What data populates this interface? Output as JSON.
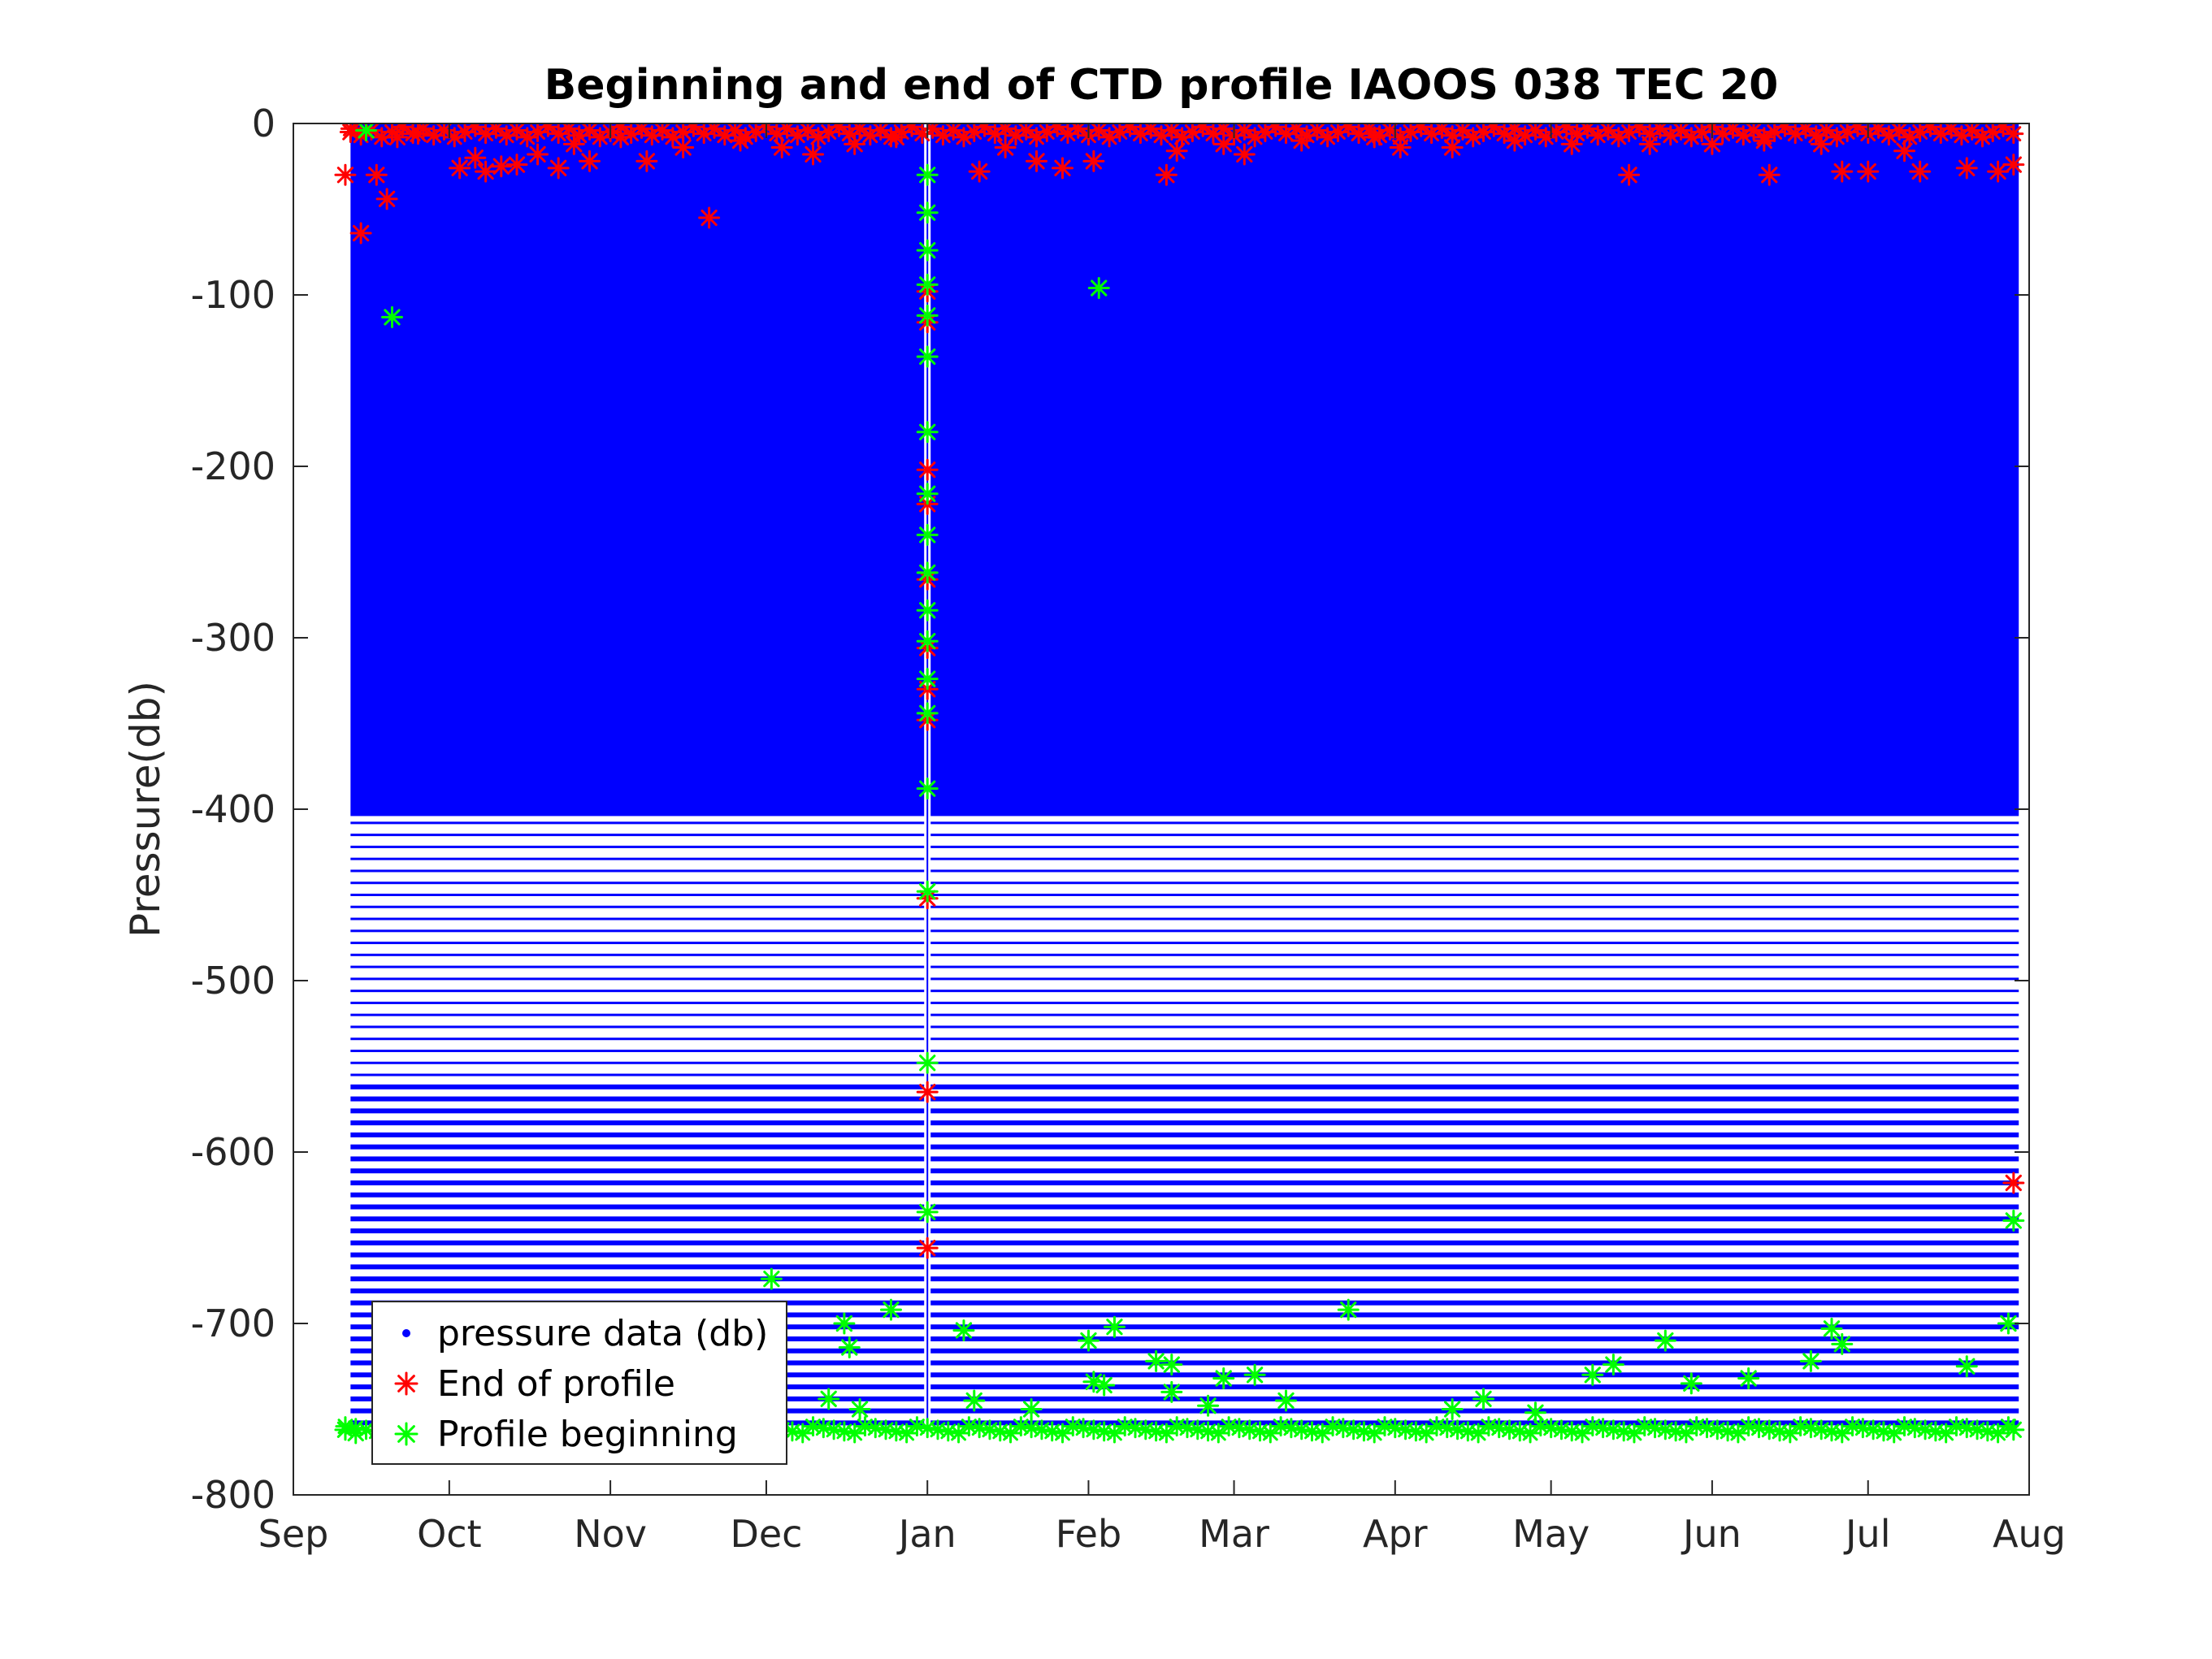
{
  "chart_data": {
    "type": "scatter",
    "title": "Beginning and end of CTD profile IAOOS 038 TEC 20",
    "xlabel": "",
    "ylabel": "Pressure(db)",
    "xlim": [
      "Sep",
      "Aug"
    ],
    "ylim": [
      -800,
      0
    ],
    "x_tick_labels": [
      "Sep",
      "Oct",
      "Nov",
      "Dec",
      "Jan",
      "Feb",
      "Mar",
      "Apr",
      "May",
      "Jun",
      "Jul",
      "Aug"
    ],
    "y_tick_labels": [
      "0",
      "-100",
      "-200",
      "-300",
      "-400",
      "-500",
      "-600",
      "-700",
      "-800"
    ],
    "grid": false,
    "legend_position": "bottom-left",
    "series": [
      {
        "name": "pressure data (db)",
        "marker": "dot",
        "color": "#0000ff",
        "description_points": {
          "x_start": "Sep 12",
          "x_end": "Jul 30",
          "dense_range": [
            -404,
            0
          ],
          "sparse_levels_range": [
            -760,
            -404
          ],
          "gap_near": "Jan 1"
        }
      },
      {
        "name": "End of profile",
        "marker": "asterisk",
        "color": "#ff0000",
        "points": [
          {
            "x": "Sep 11",
            "y": -30
          },
          {
            "x": "Sep 12",
            "y": -5
          },
          {
            "x": "Sep 14",
            "y": -64
          },
          {
            "x": "Sep 17",
            "y": -30
          },
          {
            "x": "Sep 19",
            "y": -44
          },
          {
            "x": "Sep 21",
            "y": -8
          },
          {
            "x": "Sep 25",
            "y": -6
          },
          {
            "x": "Oct 3",
            "y": -26
          },
          {
            "x": "Oct 6",
            "y": -20
          },
          {
            "x": "Oct 8",
            "y": -28
          },
          {
            "x": "Oct 11",
            "y": -25
          },
          {
            "x": "Oct 14",
            "y": -24
          },
          {
            "x": "Oct 18",
            "y": -18
          },
          {
            "x": "Oct 22",
            "y": -26
          },
          {
            "x": "Oct 25",
            "y": -12
          },
          {
            "x": "Oct 28",
            "y": -22
          },
          {
            "x": "Nov 3",
            "y": -8
          },
          {
            "x": "Nov 8",
            "y": -22
          },
          {
            "x": "Nov 15",
            "y": -14
          },
          {
            "x": "Nov 20",
            "y": -55
          },
          {
            "x": "Nov 26",
            "y": -10
          },
          {
            "x": "Dec 4",
            "y": -14
          },
          {
            "x": "Dec 10",
            "y": -18
          },
          {
            "x": "Dec 18",
            "y": -12
          },
          {
            "x": "Dec 26",
            "y": -8
          },
          {
            "x": "Jan 1",
            "y": -98
          },
          {
            "x": "Jan 1",
            "y": -116
          },
          {
            "x": "Jan 1",
            "y": -202
          },
          {
            "x": "Jan 1",
            "y": -222
          },
          {
            "x": "Jan 1",
            "y": -266
          },
          {
            "x": "Jan 1",
            "y": -306
          },
          {
            "x": "Jan 1",
            "y": -330
          },
          {
            "x": "Jan 1",
            "y": -348
          },
          {
            "x": "Jan 1",
            "y": -452
          },
          {
            "x": "Jan 1",
            "y": -565
          },
          {
            "x": "Jan 1",
            "y": -656
          },
          {
            "x": "Jan 11",
            "y": -28
          },
          {
            "x": "Jan 16",
            "y": -14
          },
          {
            "x": "Jan 22",
            "y": -22
          },
          {
            "x": "Jan 27",
            "y": -26
          },
          {
            "x": "Feb 2",
            "y": -22
          },
          {
            "x": "Feb 16",
            "y": -30
          },
          {
            "x": "Feb 18",
            "y": -16
          },
          {
            "x": "Feb 27",
            "y": -12
          },
          {
            "x": "Mar 3",
            "y": -18
          },
          {
            "x": "Mar 14",
            "y": -10
          },
          {
            "x": "Mar 28",
            "y": -8
          },
          {
            "x": "Apr 2",
            "y": -14
          },
          {
            "x": "Apr 12",
            "y": -14
          },
          {
            "x": "Apr 24",
            "y": -10
          },
          {
            "x": "May 5",
            "y": -12
          },
          {
            "x": "May 16",
            "y": -30
          },
          {
            "x": "May 20",
            "y": -12
          },
          {
            "x": "Jun 1",
            "y": -12
          },
          {
            "x": "Jun 11",
            "y": -10
          },
          {
            "x": "Jun 12",
            "y": -30
          },
          {
            "x": "Jun 22",
            "y": -12
          },
          {
            "x": "Jun 26",
            "y": -28
          },
          {
            "x": "Jul 1",
            "y": -28
          },
          {
            "x": "Jul 8",
            "y": -16
          },
          {
            "x": "Jul 11",
            "y": -28
          },
          {
            "x": "Jul 20",
            "y": -26
          },
          {
            "x": "Jul 26",
            "y": -28
          },
          {
            "x": "Jul 29",
            "y": -24
          },
          {
            "x": "Jul 29",
            "y": -618
          }
        ]
      },
      {
        "name": "Profile beginning",
        "marker": "asterisk",
        "color": "#00ff00",
        "points": [
          {
            "x": "Sep 11",
            "y": -762
          },
          {
            "x": "Sep 13",
            "y": -764
          },
          {
            "x": "Sep 15",
            "y": -4
          },
          {
            "x": "Sep 20",
            "y": -113
          },
          {
            "x": "Dec 2",
            "y": -674
          },
          {
            "x": "Dec 13",
            "y": -744
          },
          {
            "x": "Dec 16",
            "y": -700
          },
          {
            "x": "Dec 17",
            "y": -714
          },
          {
            "x": "Dec 19",
            "y": -750
          },
          {
            "x": "Dec 25",
            "y": -692
          },
          {
            "x": "Jan 1",
            "y": -30
          },
          {
            "x": "Jan 1",
            "y": -52
          },
          {
            "x": "Jan 1",
            "y": -74
          },
          {
            "x": "Jan 1",
            "y": -94
          },
          {
            "x": "Jan 1",
            "y": -112
          },
          {
            "x": "Jan 1",
            "y": -136
          },
          {
            "x": "Jan 1",
            "y": -180
          },
          {
            "x": "Jan 1",
            "y": -216
          },
          {
            "x": "Jan 1",
            "y": -240
          },
          {
            "x": "Jan 1",
            "y": -262
          },
          {
            "x": "Jan 1",
            "y": -284
          },
          {
            "x": "Jan 1",
            "y": -302
          },
          {
            "x": "Jan 1",
            "y": -324
          },
          {
            "x": "Jan 1",
            "y": -344
          },
          {
            "x": "Jan 1",
            "y": -388
          },
          {
            "x": "Jan 1",
            "y": -448
          },
          {
            "x": "Jan 1",
            "y": -548
          },
          {
            "x": "Jan 1",
            "y": -635
          },
          {
            "x": "Jan 8",
            "y": -704
          },
          {
            "x": "Jan 10",
            "y": -745
          },
          {
            "x": "Jan 21",
            "y": -750
          },
          {
            "x": "Feb 1",
            "y": -710
          },
          {
            "x": "Feb 2",
            "y": -734
          },
          {
            "x": "Feb 3",
            "y": -96
          },
          {
            "x": "Feb 4",
            "y": -736
          },
          {
            "x": "Feb 6",
            "y": -702
          },
          {
            "x": "Feb 14",
            "y": -722
          },
          {
            "x": "Feb 17",
            "y": -740
          },
          {
            "x": "Feb 17",
            "y": -724
          },
          {
            "x": "Feb 24",
            "y": -748
          },
          {
            "x": "Feb 27",
            "y": -732
          },
          {
            "x": "Mar 5",
            "y": -730
          },
          {
            "x": "Mar 11",
            "y": -745
          },
          {
            "x": "Mar 23",
            "y": -692
          },
          {
            "x": "Apr 12",
            "y": -750
          },
          {
            "x": "Apr 18",
            "y": -744
          },
          {
            "x": "Apr 28",
            "y": -752
          },
          {
            "x": "May 9",
            "y": -730
          },
          {
            "x": "May 13",
            "y": -724
          },
          {
            "x": "May 23",
            "y": -710
          },
          {
            "x": "May 28",
            "y": -735
          },
          {
            "x": "Jun 8",
            "y": -732
          },
          {
            "x": "Jun 20",
            "y": -722
          },
          {
            "x": "Jun 24",
            "y": -703
          },
          {
            "x": "Jun 26",
            "y": -712
          },
          {
            "x": "Jul 20",
            "y": -725
          },
          {
            "x": "Jul 28",
            "y": -700
          },
          {
            "x": "Jul 29",
            "y": -640
          },
          {
            "x": "Jul 29",
            "y": -762
          }
        ]
      }
    ]
  }
}
